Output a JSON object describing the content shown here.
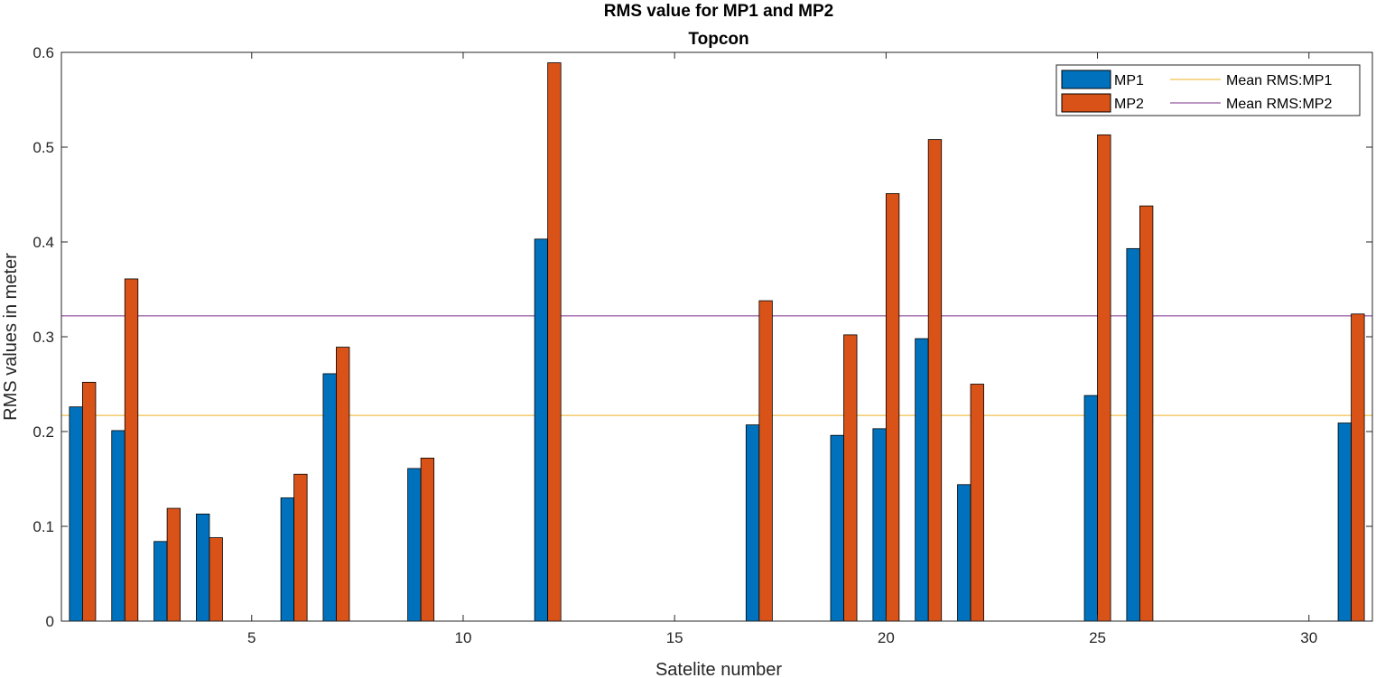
{
  "chart_data": {
    "type": "bar",
    "title": "RMS value for MP1 and MP2",
    "subtitle": "Topcon",
    "xlabel": "Satelite number",
    "ylabel": "RMS values in meter",
    "xlim": [
      0.5,
      31.5
    ],
    "ylim": [
      0,
      0.6
    ],
    "xticks": [
      5,
      10,
      15,
      20,
      25,
      30
    ],
    "yticks": [
      0,
      0.1,
      0.2,
      0.3,
      0.4,
      0.5,
      0.6
    ],
    "grid": false,
    "legend_position": "top-right",
    "x": [
      1,
      2,
      3,
      4,
      6,
      7,
      9,
      12,
      17,
      19,
      20,
      21,
      22,
      25,
      26,
      31
    ],
    "series": [
      {
        "name": "MP1",
        "color": "#0072BD",
        "values": [
          0.226,
          0.201,
          0.084,
          0.113,
          0.13,
          0.261,
          0.161,
          0.403,
          0.207,
          0.196,
          0.203,
          0.298,
          0.144,
          0.238,
          0.393,
          0.209
        ]
      },
      {
        "name": "MP2",
        "color": "#D95319",
        "values": [
          0.252,
          0.361,
          0.119,
          0.088,
          0.155,
          0.289,
          0.172,
          0.589,
          0.338,
          0.302,
          0.451,
          0.508,
          0.25,
          0.513,
          0.438,
          0.324
        ]
      }
    ],
    "reference_lines": [
      {
        "name": "Mean RMS:MP1",
        "value": 0.217,
        "color": "#EDB120"
      },
      {
        "name": "Mean RMS:MP2",
        "value": 0.322,
        "color": "#7E2F8E"
      }
    ]
  }
}
